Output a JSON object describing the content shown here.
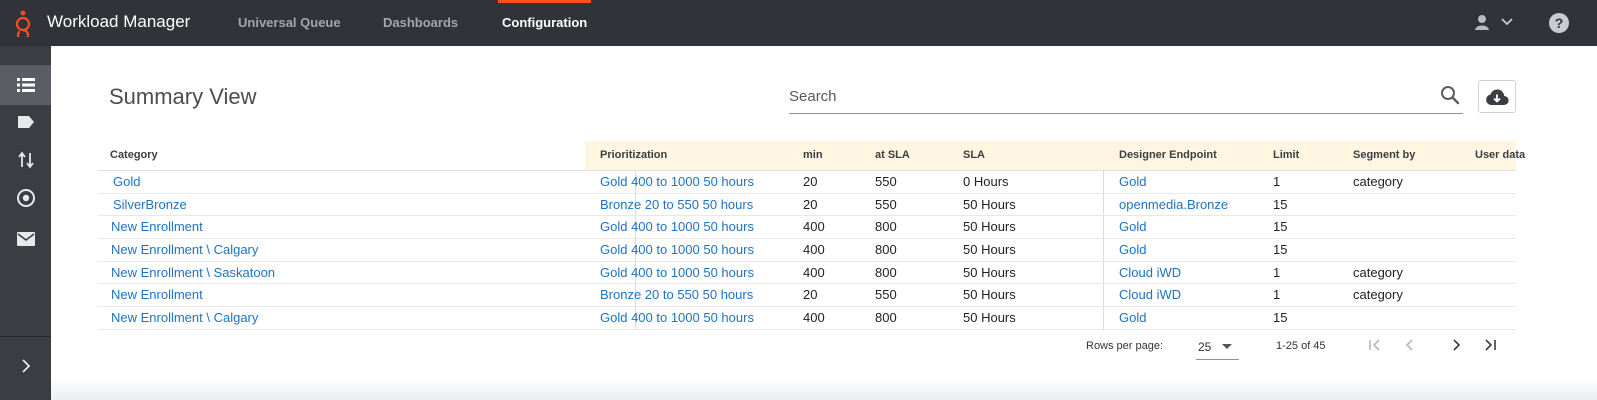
{
  "app": {
    "title": "Workload Manager"
  },
  "nav": {
    "tabs": [
      "Universal Queue",
      "Dashboards",
      "Configuration"
    ],
    "active": "Configuration"
  },
  "header_icons": [
    "user-icon",
    "chevron-down-icon",
    "help-icon"
  ],
  "sidebar": {
    "items": [
      "list-icon",
      "tag-icon",
      "sort-icon",
      "target-icon",
      "mail-icon"
    ],
    "active_index": 0,
    "expand_icon": "chevron-right-icon"
  },
  "page": {
    "title": "Summary View"
  },
  "search": {
    "placeholder": "Search",
    "value": ""
  },
  "table": {
    "headers": {
      "category": "Category",
      "prioritization": "Prioritization",
      "min": "min",
      "at_sla": "at SLA",
      "sla": "SLA",
      "designer_endpoint": "Designer Endpoint",
      "limit": "Limit",
      "segment_by": "Segment by",
      "user_data": "User data"
    },
    "rows": [
      {
        "category": "Gold",
        "prioritization": "Gold 400 to 1000 50 hours",
        "min": "20",
        "at_sla": "550",
        "sla": "0 Hours",
        "designer_endpoint": "Gold",
        "limit": "1",
        "segment_by": "category",
        "user_data": ""
      },
      {
        "category": "SilverBronze",
        "prioritization": "Bronze 20 to 550 50 hours",
        "min": "20",
        "at_sla": "550",
        "sla": "50 Hours",
        "designer_endpoint": "openmedia.Bronze",
        "limit": "15",
        "segment_by": "",
        "user_data": ""
      },
      {
        "category": "New Enrollment",
        "prioritization": "Gold 400 to 1000 50 hours",
        "min": "400",
        "at_sla": "800",
        "sla": "50 Hours",
        "designer_endpoint": "Gold",
        "limit": "15",
        "segment_by": "",
        "user_data": ""
      },
      {
        "category": "New Enrollment \\ Calgary",
        "prioritization": "Gold 400 to 1000 50 hours",
        "min": "400",
        "at_sla": "800",
        "sla": "50 Hours",
        "designer_endpoint": "Gold",
        "limit": "15",
        "segment_by": "",
        "user_data": ""
      },
      {
        "category": "New Enrollment \\ Saskatoon",
        "prioritization": "Gold 400 to 1000 50 hours",
        "min": "400",
        "at_sla": "800",
        "sla": "50 Hours",
        "designer_endpoint": "Cloud iWD",
        "limit": "1",
        "segment_by": "category",
        "user_data": ""
      },
      {
        "category": "New Enrollment",
        "prioritization": "Bronze 20 to 550 50 hours",
        "min": "20",
        "at_sla": "550",
        "sla": "50 Hours",
        "designer_endpoint": "Cloud iWD",
        "limit": "1",
        "segment_by": "category",
        "user_data": ""
      },
      {
        "category": "New Enrollment \\ Calgary",
        "prioritization": "Gold 400 to 1000 50 hours",
        "min": "400",
        "at_sla": "800",
        "sla": "50 Hours",
        "designer_endpoint": "Gold",
        "limit": "15",
        "segment_by": "",
        "user_data": ""
      }
    ]
  },
  "pagination": {
    "rows_per_page_label": "Rows per page:",
    "rows_per_page": "25",
    "range": "1-25 of 45"
  },
  "colors": {
    "topbar": "#303338",
    "sidebar": "#3a3d42",
    "accent": "#ff4f1f",
    "link": "#1f72c4",
    "header_highlight": "#fff5e1"
  }
}
